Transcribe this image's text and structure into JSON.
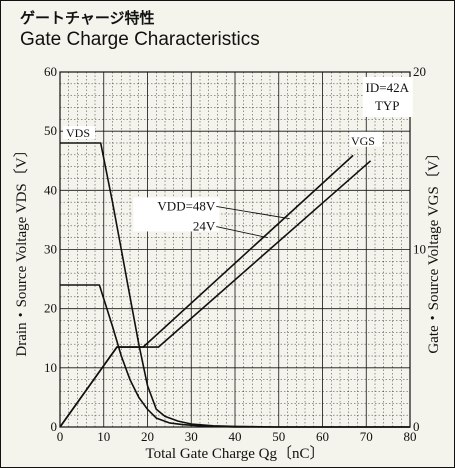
{
  "chart_data": {
    "type": "line",
    "title_jp": "ゲートチャージ特性",
    "title": "Gate Charge Characteristics",
    "xlabel": "Total Gate Charge  Qg〔nC〕",
    "ylabel_left": "Drain・Source Voltage  VDS〔V〕",
    "ylabel_right": "Gate・Source Voltage  VGS〔V〕",
    "xlim": [
      0,
      80
    ],
    "ylim_left": [
      0,
      60
    ],
    "ylim_right": [
      0,
      20
    ],
    "x_ticks": [
      "0",
      "10",
      "20",
      "30",
      "40",
      "50",
      "60",
      "70",
      "80"
    ],
    "y_left_ticks": [
      "0",
      "10",
      "20",
      "30",
      "40",
      "50",
      "60"
    ],
    "y_right_ticks": [
      "0",
      "10",
      "20"
    ],
    "conditions": [
      "ID=42A",
      "TYP"
    ],
    "annotations": {
      "vds": "VDS",
      "vgs": "VGS",
      "vdd48": "VDD=48V",
      "vdd24": "24V"
    },
    "grid": true,
    "series": [
      {
        "name": "VDS (VDD=48V)",
        "axis": "left",
        "x": [
          0,
          9.3,
          12,
          14,
          16,
          18,
          20,
          22,
          24,
          27,
          30,
          35,
          40,
          50,
          80
        ],
        "y": [
          48,
          48,
          38,
          30,
          22,
          14,
          7,
          3,
          1.8,
          1,
          0.5,
          0.2,
          0.1,
          0,
          0
        ]
      },
      {
        "name": "VDS (VDD=24V)",
        "axis": "left",
        "x": [
          0,
          9,
          12,
          14,
          16,
          18,
          20,
          22,
          25,
          28,
          32,
          36,
          40,
          80
        ],
        "y": [
          24,
          24,
          17,
          12,
          8,
          5,
          3,
          1.5,
          0.7,
          0.4,
          0.2,
          0.1,
          0,
          0
        ]
      },
      {
        "name": "VGS (VDD=48V)",
        "axis": "right",
        "x": [
          0,
          13,
          22.5,
          71
        ],
        "y": [
          0,
          4.5,
          4.5,
          15.0
        ]
      },
      {
        "name": "VGS (VDD=24V)",
        "axis": "right",
        "x": [
          0,
          13,
          19,
          67
        ],
        "y": [
          0,
          4.5,
          4.5,
          15.3
        ]
      }
    ]
  }
}
